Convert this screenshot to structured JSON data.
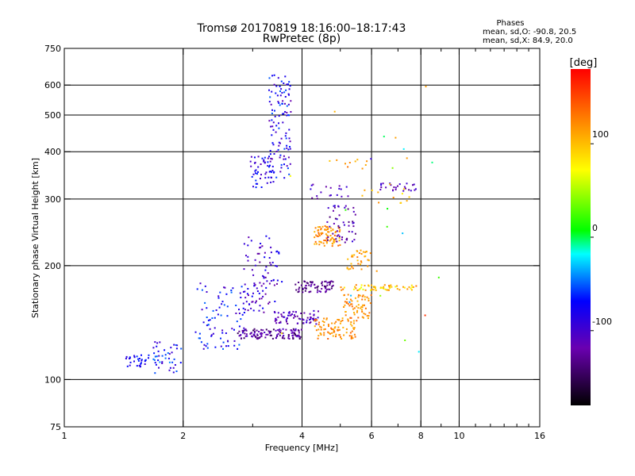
{
  "chart_data": {
    "type": "scatter",
    "title": "Tromsø 20170819 18:16:00–18:17:43",
    "subtitle": "RwPretec (8p)",
    "xlabel": "Frequency [MHz]",
    "ylabel": "Stationary phase Virtual Height [km]",
    "x_scale": "log",
    "y_scale": "log",
    "xlim": [
      1,
      16
    ],
    "ylim": [
      75,
      750
    ],
    "x_ticks": [
      1,
      2,
      4,
      6,
      8,
      10,
      16
    ],
    "x_tick_labels": [
      "1",
      "2",
      "4",
      "6",
      "8",
      "10",
      "16"
    ],
    "x_minor_ticks": [
      3,
      5,
      7,
      9,
      11,
      12,
      13,
      14,
      15
    ],
    "y_ticks": [
      75,
      100,
      200,
      300,
      400,
      500,
      600,
      750
    ],
    "y_tick_labels": [
      "75",
      "100",
      "200",
      "300",
      "400",
      "500",
      "600",
      "750"
    ],
    "grid_x": [
      2,
      4,
      6,
      8,
      10
    ],
    "grid_y": [
      100,
      200,
      300,
      400,
      500,
      600
    ],
    "stats": {
      "heading": "Phases",
      "line1": "mean, sd,O: -90.8, 20.5",
      "line2": "mean, sd,X:  84.9, 20.0"
    },
    "colorbar": {
      "label": "[deg]",
      "range": [
        -180,
        180
      ],
      "ticks": [
        100,
        0,
        -100
      ],
      "tick_labels": [
        "100",
        "0",
        "-100"
      ]
    },
    "clusters": [
      {
        "f": [
          1.42,
          1.65
        ],
        "h": [
          108,
          116
        ],
        "phase": [
          -95,
          -60
        ],
        "n": 30
      },
      {
        "f": [
          1.68,
          1.98
        ],
        "h": [
          104,
          126
        ],
        "phase": [
          -110,
          -40
        ],
        "n": 45
      },
      {
        "f": [
          2.15,
          2.9
        ],
        "h": [
          120,
          180
        ],
        "phase": [
          -110,
          -45
        ],
        "n": 90
      },
      {
        "f": [
          2.85,
          3.5
        ],
        "h": [
          150,
          240
        ],
        "phase": [
          -130,
          -70
        ],
        "n": 90
      },
      {
        "f": [
          2.75,
          4.0
        ],
        "h": [
          128,
          136
        ],
        "phase": [
          -150,
          -100
        ],
        "n": 120
      },
      {
        "f": [
          3.3,
          3.75
        ],
        "h": [
          340,
          640
        ],
        "phase": [
          -120,
          -50
        ],
        "n": 110
      },
      {
        "f": [
          2.95,
          3.4
        ],
        "h": [
          320,
          390
        ],
        "phase": [
          -120,
          -60
        ],
        "n": 50
      },
      {
        "f": [
          3.4,
          4.4
        ],
        "h": [
          140,
          152
        ],
        "phase": [
          -130,
          -90
        ],
        "n": 70
      },
      {
        "f": [
          3.85,
          4.8
        ],
        "h": [
          170,
          182
        ],
        "phase": [
          -150,
          -110
        ],
        "n": 70
      },
      {
        "f": [
          4.3,
          5.0
        ],
        "h": [
          225,
          255
        ],
        "phase": [
          100,
          140
        ],
        "n": 80
      },
      {
        "f": [
          4.3,
          5.5
        ],
        "h": [
          128,
          146
        ],
        "phase": [
          100,
          140
        ],
        "n": 90
      },
      {
        "f": [
          5.1,
          6.0
        ],
        "h": [
          145,
          168
        ],
        "phase": [
          100,
          135
        ],
        "n": 60
      },
      {
        "f": [
          5.2,
          6.0
        ],
        "h": [
          195,
          220
        ],
        "phase": [
          95,
          135
        ],
        "n": 35
      },
      {
        "f": [
          5.0,
          7.8
        ],
        "h": [
          172,
          178
        ],
        "phase": [
          60,
          130
        ],
        "n": 60
      },
      {
        "f": [
          4.6,
          5.5
        ],
        "h": [
          230,
          290
        ],
        "phase": [
          -140,
          -90
        ],
        "n": 50
      },
      {
        "f": [
          4.2,
          5.3
        ],
        "h": [
          300,
          330
        ],
        "phase": [
          -130,
          -90
        ],
        "n": 18
      },
      {
        "f": [
          6.3,
          7.8
        ],
        "h": [
          315,
          330
        ],
        "phase": [
          -130,
          -90
        ],
        "n": 25
      },
      {
        "f": [
          5.5,
          7.5
        ],
        "h": [
          290,
          330
        ],
        "phase": [
          85,
          140
        ],
        "n": 12
      },
      {
        "f": [
          4.7,
          6.0
        ],
        "h": [
          360,
          385
        ],
        "phase": [
          85,
          130
        ],
        "n": 10
      },
      {
        "f": [
          3.5,
          9.0
        ],
        "h": [
          105,
          600
        ],
        "phase": [
          -100,
          160
        ],
        "n": 25
      }
    ]
  }
}
